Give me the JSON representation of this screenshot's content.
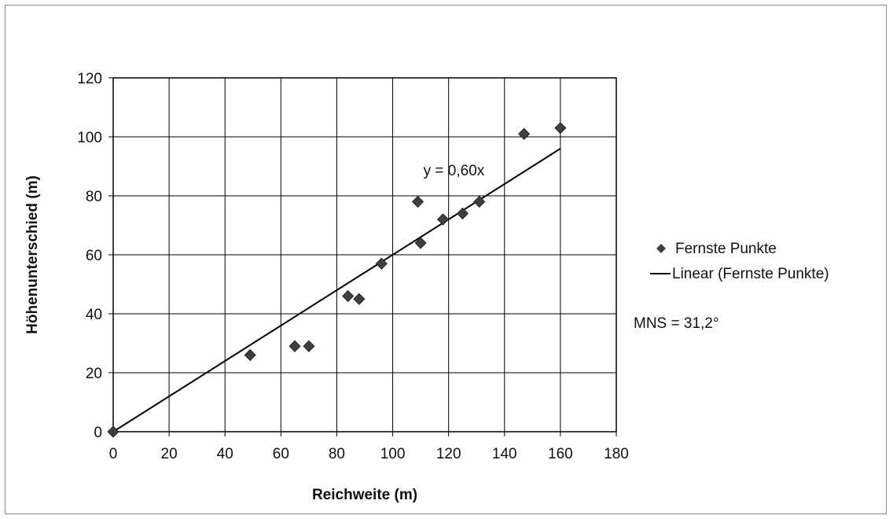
{
  "chart_data": {
    "type": "scatter",
    "xlabel": "Reichweite (m)",
    "ylabel": "Höhenunterschied (m)",
    "xlim": [
      0,
      180
    ],
    "ylim": [
      0,
      120
    ],
    "xticks": [
      0,
      20,
      40,
      60,
      80,
      100,
      120,
      140,
      160,
      180
    ],
    "yticks": [
      0,
      20,
      40,
      60,
      80,
      100,
      120
    ],
    "grid": true,
    "legend_position": "right",
    "series": [
      {
        "name": "Fernste Punkte",
        "marker": "diamond",
        "color": "#3f3f3f",
        "points": [
          {
            "x": 0,
            "y": 0
          },
          {
            "x": 49,
            "y": 26
          },
          {
            "x": 65,
            "y": 29
          },
          {
            "x": 70,
            "y": 29
          },
          {
            "x": 84,
            "y": 46
          },
          {
            "x": 88,
            "y": 45
          },
          {
            "x": 96,
            "y": 57
          },
          {
            "x": 109,
            "y": 78
          },
          {
            "x": 110,
            "y": 64
          },
          {
            "x": 118,
            "y": 72
          },
          {
            "x": 125,
            "y": 74
          },
          {
            "x": 131,
            "y": 78
          },
          {
            "x": 147,
            "y": 101
          },
          {
            "x": 160,
            "y": 103
          }
        ]
      }
    ],
    "trendline": {
      "name": "Linear (Fernste Punkte)",
      "slope": 0.6,
      "intercept": 0,
      "x_range": [
        0,
        160
      ],
      "equation_label": "y = 0,60x",
      "color": "#000000"
    },
    "annotation": "MNS = 31,2°"
  }
}
